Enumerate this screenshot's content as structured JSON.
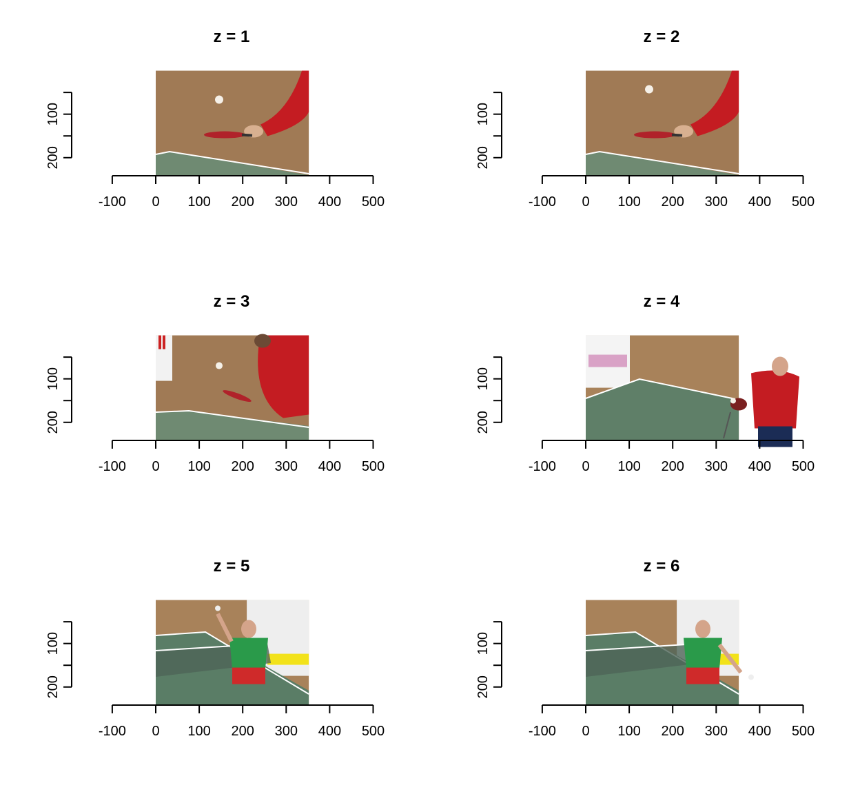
{
  "chart_data": [
    {
      "type": "image",
      "title": "z = 1",
      "xlim": [
        -100,
        500
      ],
      "x_ticks": [
        "-100",
        "0",
        "100",
        "200",
        "300",
        "400",
        "500"
      ],
      "y_ticks": [
        "100",
        "200"
      ],
      "image_extent": {
        "x": [
          0,
          352
        ],
        "y": [
          0,
          240
        ]
      },
      "scene": {
        "description": "close-up: hand with red paddle, ball above",
        "table_color": "#6f8a72",
        "wall_color": "#a07a55",
        "shirt_color": "#c41c22"
      }
    },
    {
      "type": "image",
      "title": "z = 2",
      "xlim": [
        -100,
        500
      ],
      "x_ticks": [
        "-100",
        "0",
        "100",
        "200",
        "300",
        "400",
        "500"
      ],
      "y_ticks": [
        "100",
        "200"
      ],
      "image_extent": {
        "x": [
          0,
          352
        ],
        "y": [
          0,
          240
        ]
      },
      "scene": {
        "description": "close-up: hand with red paddle, ball higher",
        "table_color": "#6f8a72",
        "wall_color": "#a07a55",
        "shirt_color": "#c41c22"
      }
    },
    {
      "type": "image",
      "title": "z = 3",
      "xlim": [
        -100,
        500
      ],
      "x_ticks": [
        "-100",
        "0",
        "100",
        "200",
        "300",
        "400",
        "500"
      ],
      "y_ticks": [
        "100",
        "200"
      ],
      "image_extent": {
        "x": [
          0,
          352
        ],
        "y": [
          0,
          240
        ]
      },
      "scene": {
        "description": "player in red serving, table edge",
        "table_color": "#6f8a72",
        "wall_color": "#a07a55",
        "shirt_color": "#c41c22"
      }
    },
    {
      "type": "image",
      "title": "z = 4",
      "xlim": [
        -100,
        500
      ],
      "x_ticks": [
        "-100",
        "0",
        "100",
        "200",
        "300",
        "400",
        "500"
      ],
      "y_ticks": [
        "100",
        "200"
      ],
      "image_extent": {
        "x": [
          0,
          352
        ],
        "y": [
          0,
          240
        ]
      },
      "scene": {
        "description": "wide shot: player in red, green table and net",
        "table_color": "#5f7f68",
        "wall_color": "#a8825a",
        "shirt_color": "#c41c22"
      }
    },
    {
      "type": "image",
      "title": "z = 5",
      "xlim": [
        -100,
        500
      ],
      "x_ticks": [
        "-100",
        "0",
        "100",
        "200",
        "300",
        "400",
        "500"
      ],
      "y_ticks": [
        "100",
        "200"
      ],
      "image_extent": {
        "x": [
          0,
          352
        ],
        "y": [
          0,
          240
        ]
      },
      "scene": {
        "description": "player in green shirt red shorts behind table",
        "table_color": "#5a7d66",
        "wall_color": "#a8825a",
        "shirt_color": "#2a9a4a"
      }
    },
    {
      "type": "image",
      "title": "z = 6",
      "xlim": [
        -100,
        500
      ],
      "x_ticks": [
        "-100",
        "0",
        "100",
        "200",
        "300",
        "400",
        "500"
      ],
      "y_ticks": [
        "100",
        "200"
      ],
      "image_extent": {
        "x": [
          0,
          352
        ],
        "y": [
          0,
          240
        ]
      },
      "scene": {
        "description": "player in green shirt returning ball",
        "table_color": "#5a7d66",
        "wall_color": "#a8825a",
        "shirt_color": "#2a9a4a"
      }
    }
  ]
}
